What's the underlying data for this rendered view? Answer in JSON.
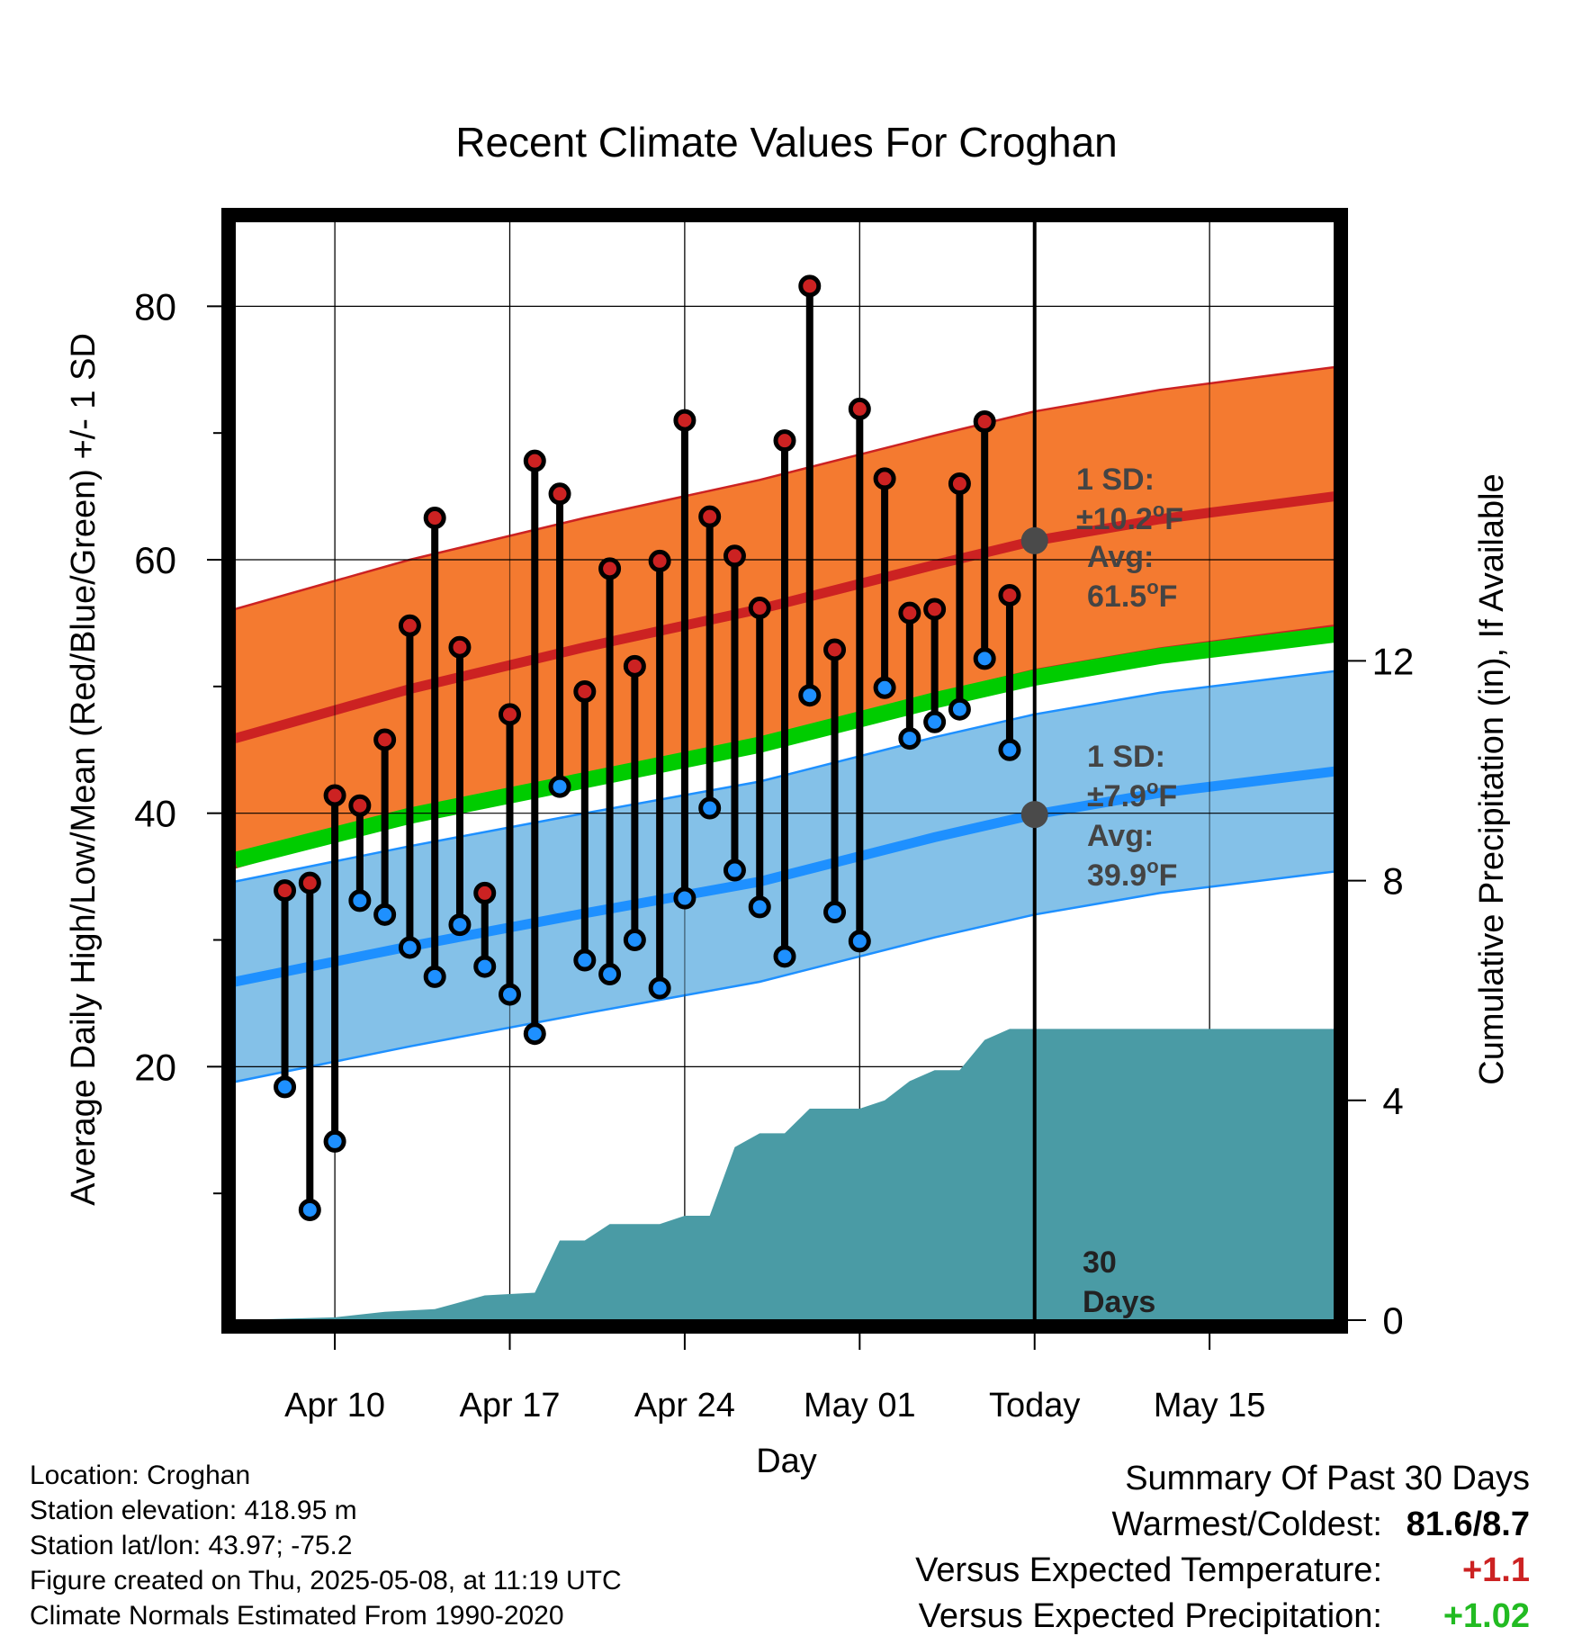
{
  "chart_data": {
    "type": "line",
    "title": "Recent Climate Values For Croghan",
    "xlabel": "Day",
    "ylabel": "Average Daily High/Low/Mean (Red/Blue/Green) +/- 1 SD",
    "y2label": "Cumulative Precipitation (in), If Available",
    "ylim": [
      0,
      86.7
    ],
    "y2lim": [
      0,
      20
    ],
    "yticks": [
      20,
      40,
      60,
      80
    ],
    "yticks_minor": [
      10,
      30,
      50,
      70
    ],
    "y2ticks": [
      0,
      4,
      8,
      12
    ],
    "xlim": [
      "2025-04-06",
      "2025-05-20"
    ],
    "xticks": [
      {
        "date": "2025-04-10",
        "label": "Apr 10"
      },
      {
        "date": "2025-04-17",
        "label": "Apr 17"
      },
      {
        "date": "2025-04-24",
        "label": "Apr 24"
      },
      {
        "date": "2025-05-01",
        "label": "May 01"
      },
      {
        "date": "2025-05-08",
        "label": "Today"
      },
      {
        "date": "2025-05-15",
        "label": "May 15"
      }
    ],
    "grid": true,
    "colors": {
      "high": "#cc2222",
      "high_band": "#f47a30",
      "low": "#1e90ff",
      "low_band": "#84c1e8",
      "mean": "#00cc00",
      "precip": "#4a9ba5",
      "stem": "#000000"
    },
    "daily": [
      {
        "date": "2025-04-08",
        "high": 33.9,
        "low": 18.4
      },
      {
        "date": "2025-04-09",
        "high": 34.5,
        "low": 8.7
      },
      {
        "date": "2025-04-10",
        "high": 41.4,
        "low": 14.1
      },
      {
        "date": "2025-04-11",
        "high": 40.6,
        "low": 33.1
      },
      {
        "date": "2025-04-12",
        "high": 45.8,
        "low": 32.0
      },
      {
        "date": "2025-04-13",
        "high": 54.8,
        "low": 29.4
      },
      {
        "date": "2025-04-14",
        "high": 63.3,
        "low": 27.1
      },
      {
        "date": "2025-04-15",
        "high": 53.1,
        "low": 31.2
      },
      {
        "date": "2025-04-16",
        "high": 33.7,
        "low": 27.9
      },
      {
        "date": "2025-04-17",
        "high": 47.8,
        "low": 25.7
      },
      {
        "date": "2025-04-18",
        "high": 67.8,
        "low": 22.6
      },
      {
        "date": "2025-04-19",
        "high": 65.2,
        "low": 42.1
      },
      {
        "date": "2025-04-20",
        "high": 49.6,
        "low": 28.4
      },
      {
        "date": "2025-04-21",
        "high": 59.3,
        "low": 27.3
      },
      {
        "date": "2025-04-22",
        "high": 51.6,
        "low": 30.0
      },
      {
        "date": "2025-04-23",
        "high": 59.9,
        "low": 26.2
      },
      {
        "date": "2025-04-24",
        "high": 71.0,
        "low": 33.3
      },
      {
        "date": "2025-04-25",
        "high": 63.4,
        "low": 40.4
      },
      {
        "date": "2025-04-26",
        "high": 60.3,
        "low": 35.5
      },
      {
        "date": "2025-04-27",
        "high": 56.2,
        "low": 32.6
      },
      {
        "date": "2025-04-28",
        "high": 69.4,
        "low": 28.7
      },
      {
        "date": "2025-04-29",
        "high": 81.6,
        "low": 49.3
      },
      {
        "date": "2025-04-30",
        "high": 52.9,
        "low": 32.2
      },
      {
        "date": "2025-05-01",
        "high": 71.9,
        "low": 29.9
      },
      {
        "date": "2025-05-02",
        "high": 66.4,
        "low": 49.9
      },
      {
        "date": "2025-05-03",
        "high": 55.8,
        "low": 45.9
      },
      {
        "date": "2025-05-04",
        "high": 56.1,
        "low": 47.2
      },
      {
        "date": "2025-05-05",
        "high": 66.0,
        "low": 48.2
      },
      {
        "date": "2025-05-06",
        "high": 70.9,
        "low": 52.2
      },
      {
        "date": "2025-05-07",
        "high": 57.2,
        "low": 45.0
      }
    ],
    "normals": [
      {
        "date": "2025-04-06",
        "high": 45.9,
        "low": 26.7,
        "mean": 36.3
      },
      {
        "date": "2025-04-13",
        "high": 49.8,
        "low": 29.5,
        "mean": 39.8
      },
      {
        "date": "2025-04-20",
        "high": 53.1,
        "low": 32.1,
        "mean": 42.6
      },
      {
        "date": "2025-04-27",
        "high": 56.1,
        "low": 34.6,
        "mean": 45.4
      },
      {
        "date": "2025-05-04",
        "high": 59.6,
        "low": 38.1,
        "mean": 48.9
      },
      {
        "date": "2025-05-08",
        "high": 61.5,
        "low": 39.9,
        "mean": 50.7
      },
      {
        "date": "2025-05-13",
        "high": 63.2,
        "low": 41.6,
        "mean": 52.4
      },
      {
        "date": "2025-05-20",
        "high": 65.0,
        "low": 43.3,
        "mean": 54.1
      }
    ],
    "high_sd": 10.2,
    "low_sd": 7.9,
    "precip_cumulative": [
      {
        "date": "2025-04-06",
        "value": 0.0
      },
      {
        "date": "2025-04-10",
        "value": 0.05
      },
      {
        "date": "2025-04-12",
        "value": 0.15
      },
      {
        "date": "2025-04-14",
        "value": 0.2
      },
      {
        "date": "2025-04-16",
        "value": 0.45
      },
      {
        "date": "2025-04-18",
        "value": 0.5
      },
      {
        "date": "2025-04-19",
        "value": 1.45
      },
      {
        "date": "2025-04-20",
        "value": 1.45
      },
      {
        "date": "2025-04-21",
        "value": 1.75
      },
      {
        "date": "2025-04-23",
        "value": 1.75
      },
      {
        "date": "2025-04-24",
        "value": 1.9
      },
      {
        "date": "2025-04-25",
        "value": 1.9
      },
      {
        "date": "2025-04-26",
        "value": 3.15
      },
      {
        "date": "2025-04-27",
        "value": 3.4
      },
      {
        "date": "2025-04-28",
        "value": 3.4
      },
      {
        "date": "2025-04-29",
        "value": 3.85
      },
      {
        "date": "2025-05-01",
        "value": 3.85
      },
      {
        "date": "2025-05-02",
        "value": 4.0
      },
      {
        "date": "2025-05-03",
        "value": 4.35
      },
      {
        "date": "2025-05-04",
        "value": 4.55
      },
      {
        "date": "2025-05-05",
        "value": 4.55
      },
      {
        "date": "2025-05-06",
        "value": 5.1
      },
      {
        "date": "2025-05-07",
        "value": 5.3
      },
      {
        "date": "2025-05-20",
        "value": 5.3
      }
    ],
    "today": "2025-05-08",
    "annotations": {
      "high_sd_label": "1 SD:",
      "high_sd_value": "±10.2",
      "high_avg_label": "Avg:",
      "high_avg_value": "61.5",
      "low_sd_label": "1 SD:",
      "low_sd_value": "±7.9",
      "low_avg_label": "Avg:",
      "low_avg_value": "39.9",
      "degree": "o",
      "unit": "F",
      "days_number": "30",
      "days_word": "Days"
    }
  },
  "footer": {
    "location": "Location: Croghan",
    "elevation": "Station elevation: 418.95 m",
    "latlon": "Station lat/lon: 43.97; -75.2",
    "created": "Figure created on Thu, 2025-05-08, at 11:19 UTC",
    "normals": "Climate Normals Estimated From 1990-2020"
  },
  "summary": {
    "title": "Summary Of Past 30 Days",
    "warmest_label": "Warmest/Coldest:",
    "warmest_value": "81.6/8.7",
    "temp_label": "Versus Expected Temperature:",
    "temp_value": "+1.1",
    "temp_color": "#cc2222",
    "precip_label": "Versus Expected Precipitation:",
    "precip_value": "+1.02",
    "precip_color": "#22bb22"
  }
}
